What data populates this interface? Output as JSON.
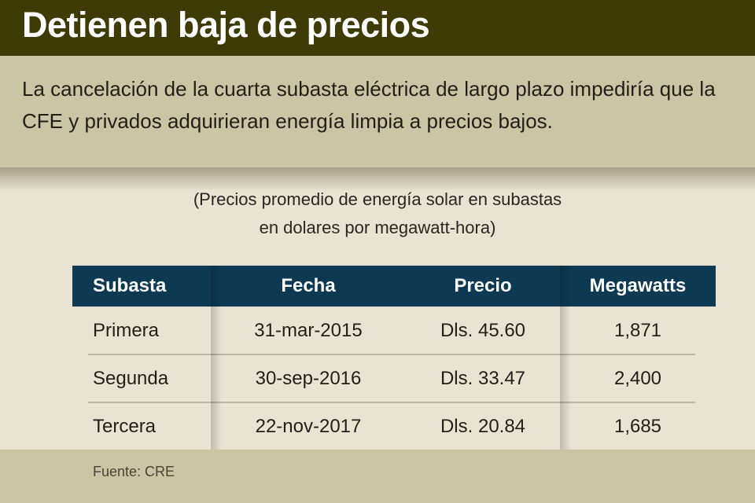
{
  "title": "Detienen baja de precios",
  "subtitle": "La cancelación de la cuarta subasta eléctrica de largo plazo impediría que la CFE y privados adquirieran energía limpia a precios bajos.",
  "note_line1": "(Precios promedio de energía solar en subastas",
  "note_line2": "en dolares por megawatt-hora)",
  "chart_data": {
    "type": "table",
    "title": "Detienen baja de precios",
    "columns": [
      "Subasta",
      "Fecha",
      "Precio",
      "Megawatts"
    ],
    "rows": [
      [
        "Primera",
        "31-mar-2015",
        "Dls. 45.60",
        "1,871"
      ],
      [
        "Segunda",
        "30-sep-2016",
        "Dls. 33.47",
        "2,400"
      ],
      [
        "Tercera",
        "22-nov-2017",
        "Dls. 20.84",
        "1,685"
      ]
    ]
  },
  "source": "Fuente: CRE",
  "colors": {
    "title_bar": "#3f3b07",
    "header": "#0d3a52",
    "band": "#cbc4a5",
    "body": "#e9e3d4"
  }
}
